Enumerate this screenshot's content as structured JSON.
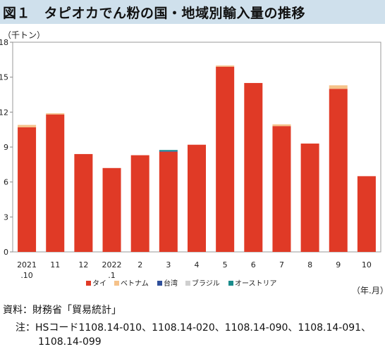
{
  "header": {
    "title": "図１　タピオカでん粉の国・地域別輸入量の推移"
  },
  "y_unit": "（千トン）",
  "x_unit": "（年.月）",
  "notes": {
    "source": "資料：財務省「貿易統計」",
    "note_line1": "注：HSコード1108.14-010、1108.14-020、1108.14-090、1108.14-091、",
    "note_line2": "1108.14-099"
  },
  "colors": {
    "タイ": "#e03a26",
    "ベトナム": "#f5c28a",
    "台湾": "#2f4f9a",
    "ブラジル": "#cfcfcf",
    "オーストリア": "#1a8c8c",
    "title_bg": "#cfe0ec"
  },
  "chart_data": {
    "type": "bar",
    "stacked": true,
    "categories": [
      "2021\n.10",
      "11",
      "12",
      "2022\n.1",
      "2",
      "3",
      "4",
      "5",
      "6",
      "7",
      "8",
      "9",
      "10"
    ],
    "series": [
      {
        "name": "タイ",
        "values": [
          10.7,
          11.8,
          8.4,
          7.2,
          8.3,
          8.6,
          9.2,
          15.9,
          14.5,
          10.8,
          9.3,
          14.0,
          6.5
        ]
      },
      {
        "name": "ベトナム",
        "values": [
          0.2,
          0.1,
          0.0,
          0.0,
          0.0,
          0.0,
          0.0,
          0.1,
          0.0,
          0.15,
          0.0,
          0.3,
          0.0
        ]
      },
      {
        "name": "台湾",
        "values": [
          0,
          0,
          0,
          0,
          0,
          0.05,
          0,
          0,
          0,
          0,
          0,
          0,
          0
        ]
      },
      {
        "name": "ブラジル",
        "values": [
          0,
          0,
          0,
          0,
          0,
          0,
          0,
          0,
          0,
          0,
          0,
          0,
          0
        ]
      },
      {
        "name": "オーストリア",
        "values": [
          0,
          0,
          0,
          0,
          0,
          0.1,
          0,
          0,
          0,
          0,
          0,
          0,
          0
        ]
      }
    ],
    "ylim": [
      0,
      18
    ],
    "yticks": [
      0,
      3,
      6,
      9,
      12,
      15,
      18
    ],
    "grid": false,
    "legend": "bottom"
  }
}
